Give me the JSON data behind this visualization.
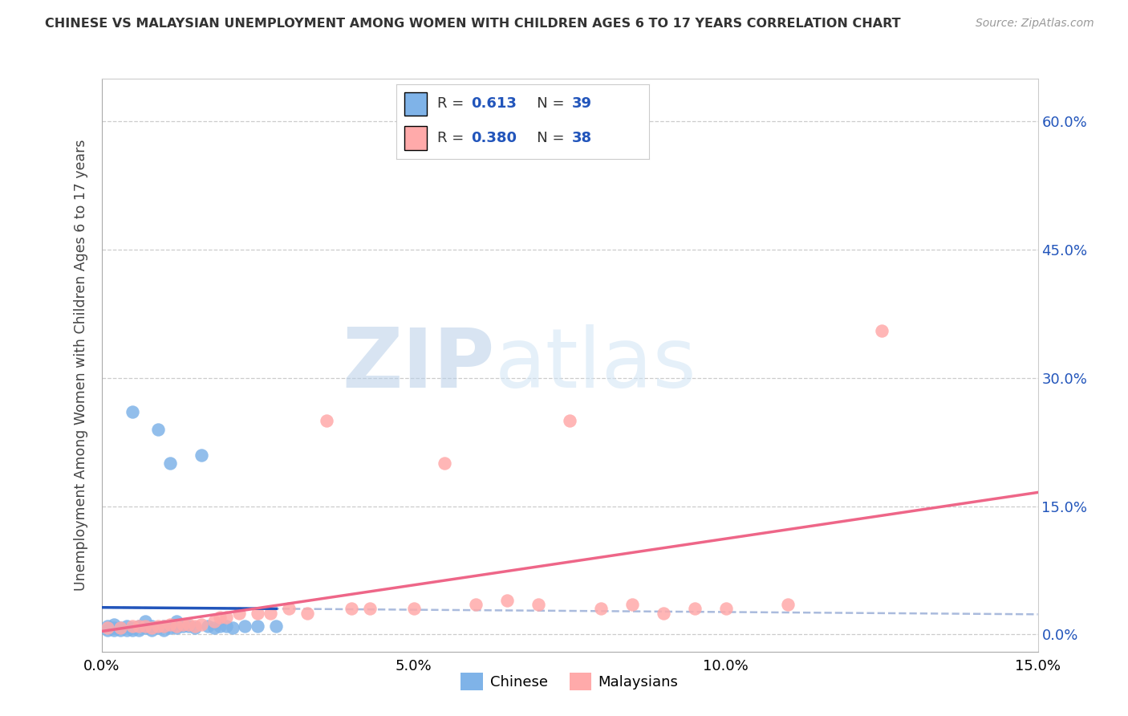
{
  "title": "CHINESE VS MALAYSIAN UNEMPLOYMENT AMONG WOMEN WITH CHILDREN AGES 6 TO 17 YEARS CORRELATION CHART",
  "source": "Source: ZipAtlas.com",
  "ylabel": "Unemployment Among Women with Children Ages 6 to 17 years",
  "xlim": [
    0.0,
    0.15
  ],
  "ylim": [
    -0.02,
    0.65
  ],
  "right_ytick_vals": [
    0.0,
    0.15,
    0.3,
    0.45,
    0.6
  ],
  "right_yticklabels": [
    "0.0%",
    "15.0%",
    "30.0%",
    "45.0%",
    "60.0%"
  ],
  "xtick_vals": [
    0.0,
    0.05,
    0.1,
    0.15
  ],
  "xticklabels": [
    "0.0%",
    "5.0%",
    "10.0%",
    "15.0%"
  ],
  "chinese_scatter_color": "#7fb3e8",
  "chinese_line_color": "#2255bb",
  "chinese_dash_color": "#aabbdd",
  "malaysian_scatter_color": "#ffaaaa",
  "malaysian_line_color": "#ee6688",
  "right_axis_color": "#2255bb",
  "legend_R_color": "#2255bb",
  "legend_N_color": "#2255bb",
  "legend_R_chinese": "0.613",
  "legend_N_chinese": "39",
  "legend_R_malaysian": "0.380",
  "legend_N_malaysian": "38",
  "watermark_text": "ZIPatlas",
  "watermark_color": "#cce0f5",
  "bg_color": "#ffffff",
  "grid_color": "#cccccc",
  "chinese_x": [
    0.001,
    0.001,
    0.002,
    0.002,
    0.002,
    0.003,
    0.003,
    0.004,
    0.004,
    0.005,
    0.005,
    0.005,
    0.006,
    0.006,
    0.007,
    0.007,
    0.007,
    0.008,
    0.008,
    0.009,
    0.009,
    0.01,
    0.01,
    0.011,
    0.011,
    0.012,
    0.012,
    0.013,
    0.014,
    0.015,
    0.016,
    0.017,
    0.018,
    0.019,
    0.02,
    0.021,
    0.023,
    0.025,
    0.028
  ],
  "chinese_y": [
    0.005,
    0.01,
    0.005,
    0.008,
    0.012,
    0.005,
    0.008,
    0.005,
    0.01,
    0.005,
    0.008,
    0.26,
    0.005,
    0.01,
    0.008,
    0.01,
    0.015,
    0.005,
    0.01,
    0.008,
    0.24,
    0.005,
    0.01,
    0.008,
    0.2,
    0.008,
    0.015,
    0.01,
    0.01,
    0.008,
    0.21,
    0.01,
    0.008,
    0.01,
    0.01,
    0.008,
    0.01,
    0.01,
    0.01
  ],
  "malaysian_x": [
    0.001,
    0.003,
    0.005,
    0.006,
    0.007,
    0.008,
    0.009,
    0.01,
    0.011,
    0.012,
    0.013,
    0.014,
    0.015,
    0.016,
    0.018,
    0.019,
    0.02,
    0.022,
    0.025,
    0.027,
    0.03,
    0.033,
    0.036,
    0.04,
    0.043,
    0.05,
    0.055,
    0.06,
    0.065,
    0.07,
    0.075,
    0.08,
    0.085,
    0.09,
    0.095,
    0.1,
    0.11,
    0.125
  ],
  "malaysian_y": [
    0.008,
    0.008,
    0.01,
    0.01,
    0.01,
    0.008,
    0.01,
    0.01,
    0.012,
    0.01,
    0.012,
    0.012,
    0.01,
    0.012,
    0.015,
    0.02,
    0.02,
    0.025,
    0.025,
    0.025,
    0.03,
    0.025,
    0.25,
    0.03,
    0.03,
    0.03,
    0.2,
    0.035,
    0.04,
    0.035,
    0.25,
    0.03,
    0.035,
    0.025,
    0.03,
    0.03,
    0.035,
    0.355
  ]
}
